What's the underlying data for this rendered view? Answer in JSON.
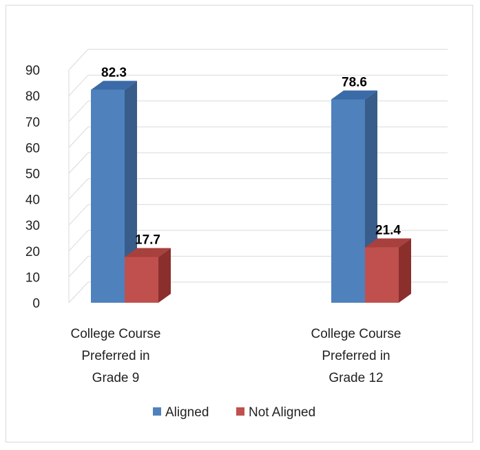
{
  "chart_data": {
    "type": "bar",
    "categories": [
      [
        "College Course",
        "Preferred in",
        "Grade 9"
      ],
      [
        "College Course",
        "Preferred in",
        "Grade 12"
      ]
    ],
    "series": [
      {
        "name": "Aligned",
        "values": [
          82.3,
          78.6
        ],
        "color": "#4f81bd",
        "side_color": "#385d8a",
        "top_color": "#3a6aa8"
      },
      {
        "name": "Not Aligned",
        "values": [
          17.7,
          21.4
        ],
        "color": "#c0504d",
        "side_color": "#8b2f2d",
        "top_color": "#a8403d"
      }
    ],
    "ylim": [
      0,
      90
    ],
    "yticks": [
      0,
      10,
      20,
      30,
      40,
      50,
      60,
      70,
      80,
      90
    ],
    "grid": true,
    "legend": "bottom"
  }
}
